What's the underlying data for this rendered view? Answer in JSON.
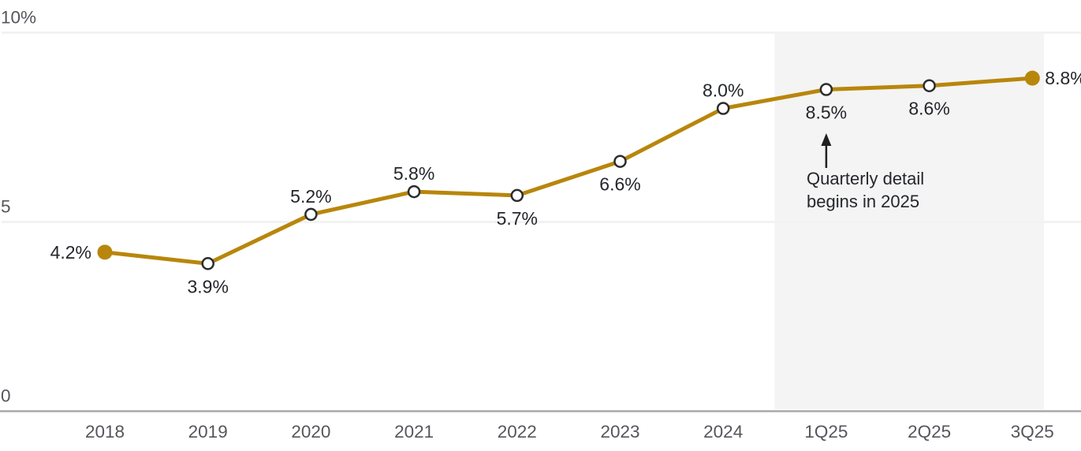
{
  "chart_data": {
    "type": "line",
    "title": "",
    "categories": [
      "2018",
      "2019",
      "2020",
      "2021",
      "2022",
      "2023",
      "2024",
      "1Q25",
      "2Q25",
      "3Q25"
    ],
    "series": [
      {
        "name": "percentage-series",
        "values": [
          4.2,
          3.9,
          5.2,
          5.8,
          5.7,
          6.6,
          8.0,
          8.5,
          8.6,
          8.8
        ]
      }
    ],
    "point_labels": [
      "4.2%",
      "3.9%",
      "5.2%",
      "5.8%",
      "5.7%",
      "6.6%",
      "8.0%",
      "8.5%",
      "8.6%",
      "8.8%"
    ],
    "label_positions": [
      "left",
      "below",
      "above",
      "above",
      "below",
      "below",
      "above",
      "below",
      "below",
      "right"
    ],
    "marker_styles": [
      "filled",
      "open",
      "open",
      "open",
      "open",
      "open",
      "open",
      "open",
      "open",
      "filled"
    ],
    "ylim": [
      0,
      10
    ],
    "yticks": [
      {
        "value": 10,
        "label": "10%"
      },
      {
        "value": 5,
        "label": "5"
      },
      {
        "value": 0,
        "label": "0"
      }
    ],
    "grid": "horizontal",
    "legend": "none",
    "xlabel": "",
    "ylabel": "",
    "highlight_region": {
      "start_after_category": "2024",
      "end": "right-edge",
      "color": "#F4F4F4"
    },
    "annotation": {
      "lines": [
        "Quarterly detail",
        "begins in 2025"
      ],
      "arrow": "up",
      "target_category": "1Q25"
    }
  },
  "colors": {
    "line": "#B8860B",
    "marker_filled": "#B8860B",
    "marker_open_stroke": "#2B2C2E",
    "marker_open_fill": "#FFFFFF",
    "gridline": "#F2F2F3",
    "axis_line": "#A8A9AB",
    "tick_label": "#54565B",
    "data_label": "#24262B",
    "annotation_text": "#24262B",
    "arrow": "#1F2022",
    "region": "#F4F4F4",
    "background": "#FFFFFF"
  }
}
